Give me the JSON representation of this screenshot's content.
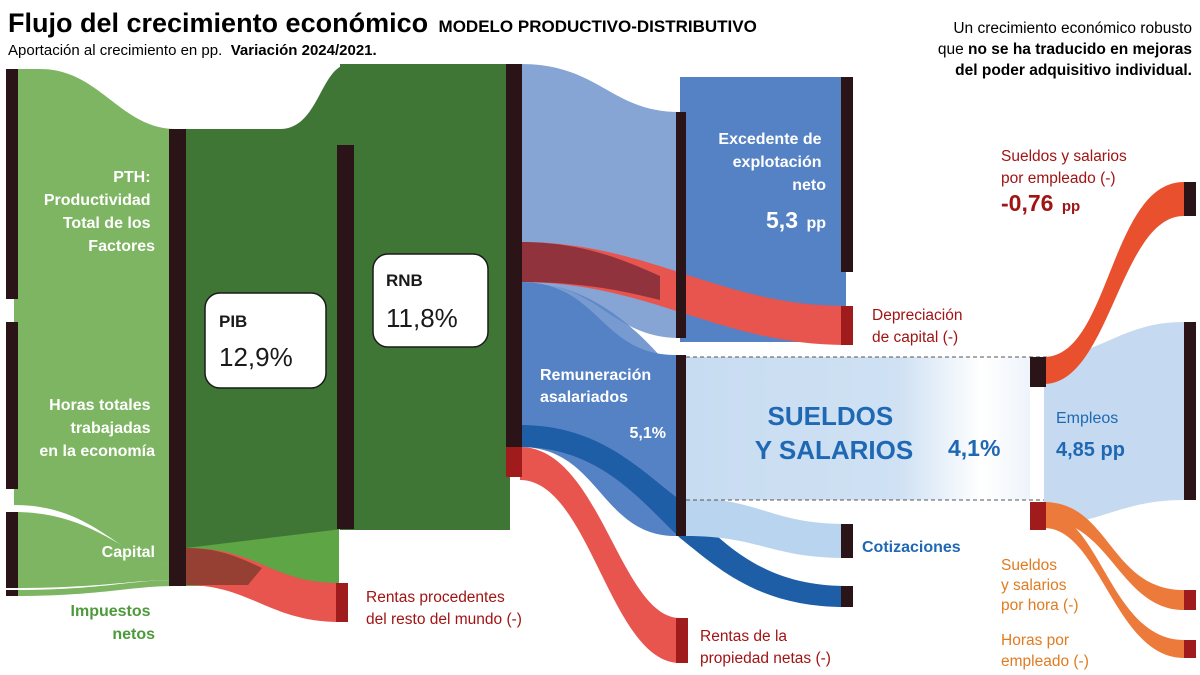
{
  "header": {
    "title": "Flujo del crecimiento económico",
    "title_suffix": "MODELO PRODUCTIVO-DISTRIBUTIVO",
    "subtitle": "Aportación al crecimiento en pp.",
    "subtitle_bold": "Variación 2024/2021."
  },
  "intro": {
    "line1": "Un crecimiento económico robusto",
    "line2_prefix": "que ",
    "line2_bold": "no se ha traducido en mejoras",
    "line3_bold": "del poder adquisitivo individual."
  },
  "sources": {
    "pth": [
      "PTH:",
      "Productividad",
      "Total de los",
      "Factores"
    ],
    "horas": [
      "Horas totales",
      "trabajadas",
      "en la economía"
    ],
    "capital": "Capital",
    "impuestos": [
      "Impuestos",
      "netos"
    ]
  },
  "nodes": {
    "pib": {
      "label": "PIB",
      "value": "12,9%"
    },
    "rnb": {
      "label": "RNB",
      "value": "11,8%"
    },
    "excedente": {
      "label": [
        "Excedente de",
        "explotación",
        "neto"
      ],
      "value": "5,3",
      "unit": "pp"
    },
    "remuneracion": {
      "label": [
        "Remuneración",
        "asalariados"
      ],
      "value": "5,1%"
    },
    "sueldos": {
      "label": [
        "SUELDOS",
        "Y SALARIOS"
      ],
      "value": "4,1%"
    },
    "empleos": {
      "label": "Empleos",
      "value": "4,85 pp"
    }
  },
  "outputs": {
    "rentas_mundo": [
      "Rentas procedentes",
      "del resto del mundo (-)"
    ],
    "depreciacion": [
      "Depreciación",
      "de capital (-)"
    ],
    "rentas_propiedad": [
      "Rentas de la",
      "propiedad netas (-)"
    ],
    "cotizaciones": "Cotizaciones",
    "sueldos_empleado": {
      "label": [
        "Sueldos y salarios",
        "por empleado (-)"
      ],
      "value": "-0,76",
      "unit": "pp"
    },
    "sueldos_hora": [
      "Sueldos",
      "y salarios",
      "por hora (-)"
    ],
    "horas_empleado": [
      "Horas por",
      "empleado (-)"
    ]
  },
  "colors": {
    "green_light": "#7db562",
    "green_mid": "#5ea545",
    "green_dark": "#3f7636",
    "blue_light": "#86a4d4",
    "blue_mid": "#5582c4",
    "blue_dark": "#1d5ea6",
    "blue_pale": "#c5daf0",
    "red": "#e8544e",
    "red_dark": "#7a1f2e",
    "orange": "#ec7a3a",
    "bar": "#2a1418"
  }
}
